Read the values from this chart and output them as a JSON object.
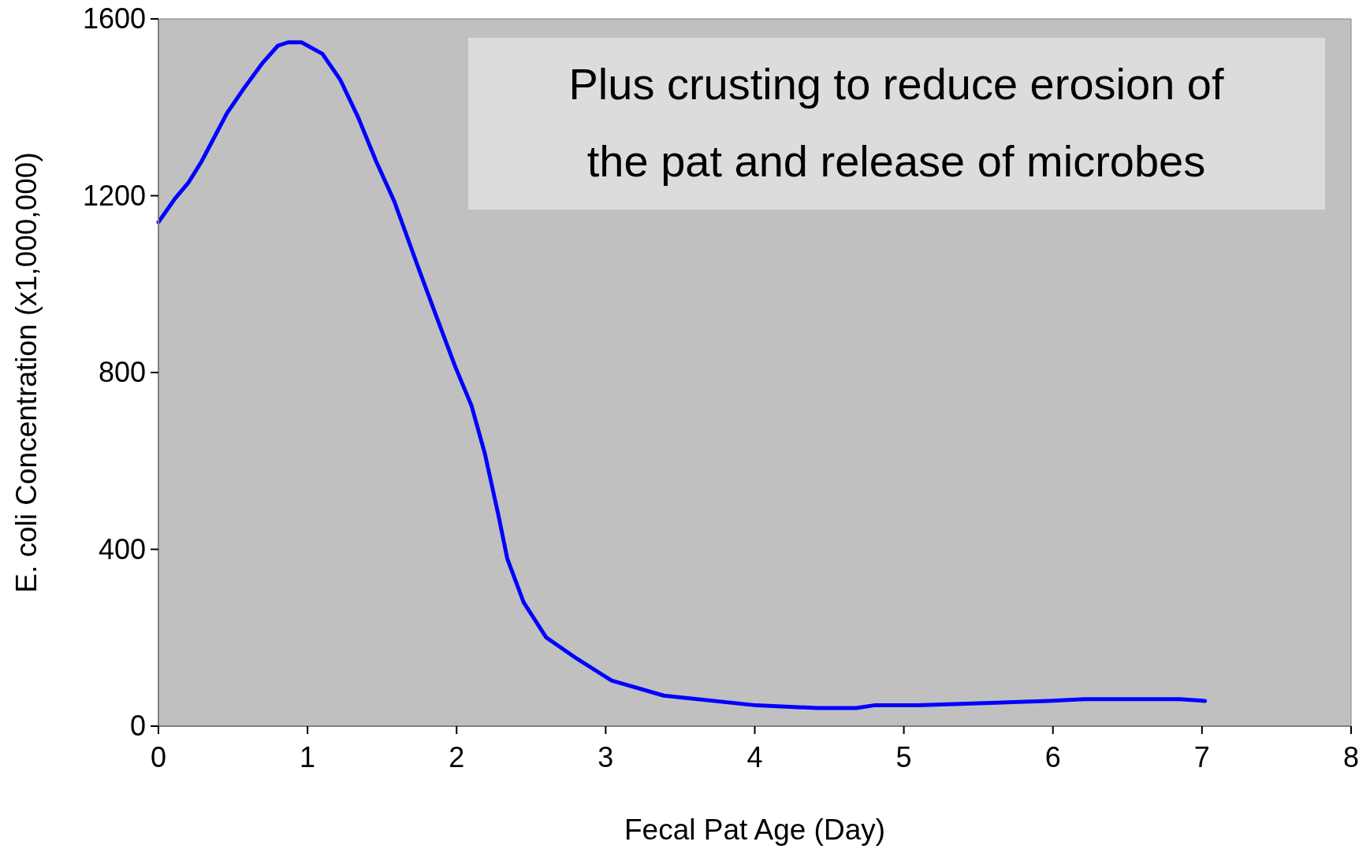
{
  "chart_data": {
    "type": "line",
    "xlabel": "Fecal Pat Age (Day)",
    "ylabel": "E. coli Concentration (x1,000,000)",
    "annotations": [
      "Plus crusting to reduce erosion of the pat and release of microbes"
    ],
    "xlim": [
      0,
      8
    ],
    "xticks": [
      0,
      1,
      2,
      3,
      4,
      5,
      6,
      7,
      8
    ],
    "ylim": [
      0,
      1600
    ],
    "yticks": [
      0,
      400,
      800,
      1200,
      1600
    ],
    "grid": false,
    "marker": "none",
    "line_style": "solid",
    "series": [
      {
        "color": "#0000ff",
        "x": [
          0,
          0.11,
          0.2,
          0.29,
          0.46,
          0.58,
          0.7,
          0.8,
          0.87,
          0.96,
          1.1,
          1.22,
          1.34,
          1.46,
          1.58,
          1.75,
          1.87,
          1.99,
          2.1,
          2.19,
          2.28,
          2.34,
          2.45,
          2.6,
          2.81,
          3.04,
          3.39,
          4.01,
          4.42,
          4.68,
          4.8,
          5.09,
          5.97,
          6.21,
          6.85,
          7.02
        ],
        "values": [
          1140,
          1193,
          1229,
          1278,
          1387,
          1446,
          1501,
          1539,
          1547,
          1547,
          1521,
          1462,
          1377,
          1278,
          1189,
          1031,
          922,
          814,
          725,
          616,
          478,
          379,
          280,
          201,
          152,
          103,
          69,
          47,
          41,
          41,
          47,
          47,
          57,
          61,
          61,
          57
        ]
      }
    ]
  }
}
